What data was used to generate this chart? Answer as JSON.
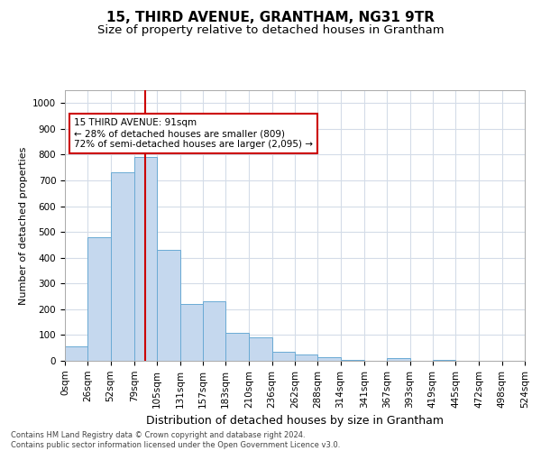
{
  "title": "15, THIRD AVENUE, GRANTHAM, NG31 9TR",
  "subtitle": "Size of property relative to detached houses in Grantham",
  "xlabel": "Distribution of detached houses by size in Grantham",
  "ylabel": "Number of detached properties",
  "bin_labels": [
    "0sqm",
    "26sqm",
    "52sqm",
    "79sqm",
    "105sqm",
    "131sqm",
    "157sqm",
    "183sqm",
    "210sqm",
    "236sqm",
    "262sqm",
    "288sqm",
    "314sqm",
    "341sqm",
    "367sqm",
    "393sqm",
    "419sqm",
    "445sqm",
    "472sqm",
    "498sqm",
    "524sqm"
  ],
  "bar_values": [
    55,
    480,
    730,
    790,
    430,
    220,
    230,
    110,
    90,
    35,
    25,
    15,
    5,
    0,
    10,
    0,
    5,
    0,
    0,
    0
  ],
  "bin_edges": [
    0,
    26,
    52,
    79,
    105,
    131,
    157,
    183,
    210,
    236,
    262,
    288,
    314,
    341,
    367,
    393,
    419,
    445,
    472,
    498,
    524
  ],
  "property_size": 91,
  "bar_color": "#c5d8ee",
  "bar_edge_color": "#6aaad4",
  "vline_color": "#cc0000",
  "vline_x": 91,
  "annotation_text": "15 THIRD AVENUE: 91sqm\n← 28% of detached houses are smaller (809)\n72% of semi-detached houses are larger (2,095) →",
  "annotation_box_color": "#ffffff",
  "annotation_box_edge": "#cc0000",
  "ylim": [
    0,
    1050
  ],
  "yticks": [
    0,
    100,
    200,
    300,
    400,
    500,
    600,
    700,
    800,
    900,
    1000
  ],
  "grid_color": "#d4dce8",
  "footer_text": "Contains HM Land Registry data © Crown copyright and database right 2024.\nContains public sector information licensed under the Open Government Licence v3.0.",
  "title_fontsize": 11,
  "subtitle_fontsize": 9.5,
  "xlabel_fontsize": 9,
  "ylabel_fontsize": 8,
  "tick_fontsize": 7.5,
  "annotation_fontsize": 7.5
}
